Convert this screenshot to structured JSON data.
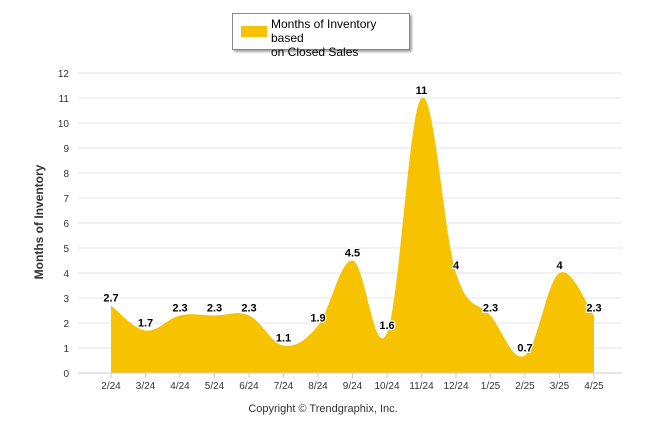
{
  "chart_data": {
    "type": "area",
    "legend": {
      "label_line1": "Months of Inventory based",
      "label_line2": "on Closed Sales",
      "position": "top-center"
    },
    "ylabel": "Months of Inventory",
    "xlabel": "",
    "ylim": [
      0,
      12
    ],
    "yticks": [
      0,
      1,
      2,
      3,
      4,
      5,
      6,
      7,
      8,
      9,
      10,
      11,
      12
    ],
    "grid": true,
    "categories": [
      "2/24",
      "3/24",
      "4/24",
      "5/24",
      "6/24",
      "7/24",
      "8/24",
      "9/24",
      "10/24",
      "11/24",
      "12/24",
      "1/25",
      "2/25",
      "3/25",
      "4/25"
    ],
    "series": [
      {
        "name": "Months of Inventory based on Closed Sales",
        "values": [
          2.7,
          1.7,
          2.3,
          2.3,
          2.3,
          1.1,
          1.9,
          4.5,
          1.6,
          11,
          4,
          2.3,
          0.7,
          4,
          2.3
        ],
        "labels": [
          "2.7",
          "1.7",
          "2.3",
          "2.3",
          "2.3",
          "1.1",
          "1.9",
          "4.5",
          "1.6",
          "11",
          "4",
          "2.3",
          "0.7",
          "4",
          "2.3"
        ]
      }
    ],
    "colors": {
      "fill": "#f7c200",
      "grid": "#e4e4e4",
      "axis": "#cccccc",
      "text": "#333333"
    }
  },
  "footer": {
    "copyright": "Copyright © Trendgraphix, Inc."
  }
}
